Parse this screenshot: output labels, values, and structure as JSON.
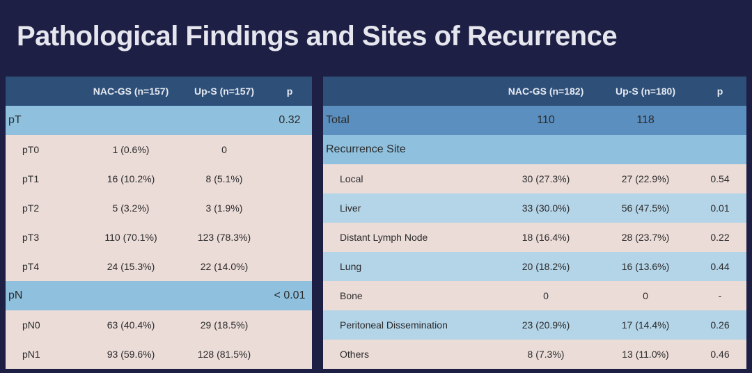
{
  "title": "Pathological Findings and Sites of Recurrence",
  "left_table": {
    "headers": [
      "",
      "NAC-GS  (n=157)",
      "Up-S (n=157)",
      "p"
    ],
    "sections": [
      {
        "label": "pT",
        "p": "0.32",
        "rows": [
          {
            "label": "pT0",
            "nac": "1 (0.6%)",
            "ups": "0"
          },
          {
            "label": "pT1",
            "nac": "16 (10.2%)",
            "ups": "8 (5.1%)"
          },
          {
            "label": "pT2",
            "nac": "5 (3.2%)",
            "ups": "3 (1.9%)"
          },
          {
            "label": "pT3",
            "nac": "110 (70.1%)",
            "ups": "123 (78.3%)"
          },
          {
            "label": "pT4",
            "nac": "24 (15.3%)",
            "ups": "22 (14.0%)"
          }
        ]
      },
      {
        "label": "pN",
        "p": "< 0.01",
        "rows": [
          {
            "label": "pN0",
            "nac": "63 (40.4%)",
            "ups": "29 (18.5%)"
          },
          {
            "label": "pN1",
            "nac": "93 (59.6%)",
            "ups": "128 (81.5%)"
          }
        ]
      }
    ]
  },
  "right_table": {
    "headers": [
      "",
      "NAC-GS  (n=182)",
      "Up-S (n=180)",
      "p"
    ],
    "total": {
      "label": "Total",
      "nac": "110",
      "ups": "118"
    },
    "section_label": "Recurrence Site",
    "rows": [
      {
        "label": "Local",
        "nac": "30 (27.3%)",
        "ups": "27 (22.9%)",
        "p": "0.54"
      },
      {
        "label": "Liver",
        "nac": "33 (30.0%)",
        "ups": "56 (47.5%)",
        "p": "0.01"
      },
      {
        "label": "Distant Lymph Node",
        "nac": "18 (16.4%)",
        "ups": "28 (23.7%)",
        "p": "0.22"
      },
      {
        "label": "Lung",
        "nac": "20 (18.2%)",
        "ups": "16 (13.6%)",
        "p": "0.44"
      },
      {
        "label": "Bone",
        "nac": "0",
        "ups": "0",
        "p": "-"
      },
      {
        "label": "Peritoneal Dissemination",
        "nac": "23 (20.9%)",
        "ups": "17 (14.4%)",
        "p": "0.26"
      },
      {
        "label": "Others",
        "nac": "8 (7.3%)",
        "ups": "13 (11.0%)",
        "p": "0.46"
      }
    ]
  }
}
